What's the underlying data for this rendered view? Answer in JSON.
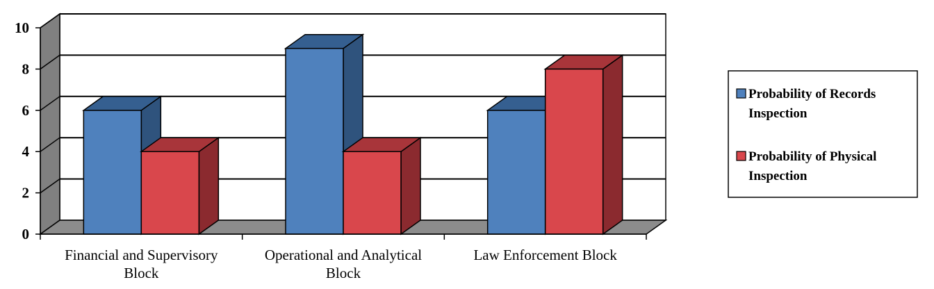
{
  "chart_data": {
    "type": "bar",
    "categories": [
      [
        "Financial and Supervisory",
        "Block"
      ],
      [
        "Operational and Analytical",
        "Block"
      ],
      [
        "Law Enforcement Block"
      ]
    ],
    "series": [
      {
        "name": [
          "Probability of Records",
          "Inspection"
        ],
        "values": [
          6,
          9,
          6
        ],
        "color": "#4f81bd",
        "side_color": "#2f537d",
        "top_color": "#355f90"
      },
      {
        "name": [
          "Probability of Physical",
          "Inspection"
        ],
        "values": [
          4,
          4,
          8
        ],
        "color": "#d9474c",
        "side_color": "#8b2a2f",
        "top_color": "#a8353a"
      }
    ],
    "ylim": [
      0,
      10
    ],
    "yticks": [
      0,
      2,
      4,
      6,
      8,
      10
    ],
    "grid": true,
    "legend": "right",
    "wall_color": "#ffffff",
    "side_wall_color": "#808080",
    "floor_color": "#8c8c8c"
  }
}
